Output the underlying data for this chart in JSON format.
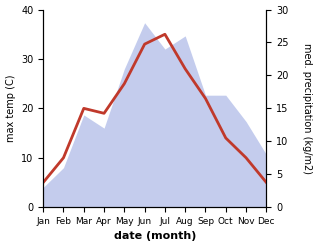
{
  "months": [
    "Jan",
    "Feb",
    "Mar",
    "Apr",
    "May",
    "Jun",
    "Jul",
    "Aug",
    "Sep",
    "Oct",
    "Nov",
    "Dec"
  ],
  "temperature": [
    5,
    10,
    20,
    19,
    25,
    33,
    35,
    28,
    22,
    14,
    10,
    5
  ],
  "precipitation": [
    3,
    6,
    14,
    12,
    21,
    28,
    24,
    26,
    17,
    17,
    13,
    8
  ],
  "temp_color": "#c0392b",
  "precip_color_fill": "#b0bce8",
  "temp_ylim": [
    0,
    40
  ],
  "precip_ylim": [
    0,
    30
  ],
  "xlabel": "date (month)",
  "ylabel_left": "max temp (C)",
  "ylabel_right": "med. precipitation (kg/m2)",
  "temp_yticks": [
    0,
    10,
    20,
    30,
    40
  ],
  "precip_yticks": [
    0,
    5,
    10,
    15,
    20,
    25,
    30
  ],
  "background_color": "#ffffff"
}
